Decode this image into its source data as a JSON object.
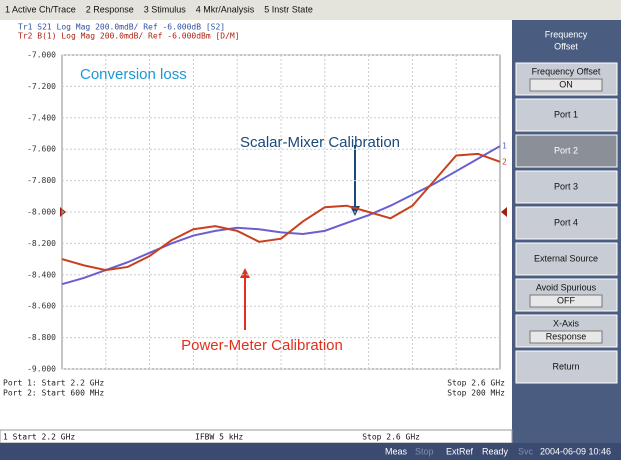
{
  "menu": [
    "1 Active Ch/Trace",
    "2 Response",
    "3 Stimulus",
    "4 Mkr/Analysis",
    "5 Instr State"
  ],
  "trace_header": [
    "Tr1 S21 Log Mag 200.0mdB/ Ref -6.000dB [S2]",
    "Tr2 B(1) Log Mag 200.0mdB/ Ref -6.000dBm [D/M]"
  ],
  "trace_labels": [
    "1",
    "2"
  ],
  "softkey_title": [
    "Frequency",
    "Offset"
  ],
  "softkeys": [
    {
      "label": "Frequency Offset",
      "value": "ON"
    },
    {
      "label": "Port 1"
    },
    {
      "label": "Port 2"
    },
    {
      "label": "Port 3"
    },
    {
      "label": "Port 4"
    },
    {
      "label": "External Source"
    },
    {
      "label": "Avoid Spurious",
      "value": "OFF"
    },
    {
      "label": "X-Axis",
      "value": "Response"
    },
    {
      "label": "Return"
    }
  ],
  "footer": {
    "port1_start": "Port 1: Start 2.2 GHz",
    "port2_start": "Port 2: Start 600 MHz",
    "port1_stop": "Stop 2.6 GHz",
    "port2_stop": "Stop 200 MHz"
  },
  "status_line": [
    "1  Start 2.2 GHz",
    "IFBW 5 kHz",
    "Stop 2.6 GHz"
  ],
  "status_bar": [
    "Meas",
    "Stop",
    "ExtRef",
    "Ready",
    "Svc",
    "2004-06-09 10:46"
  ],
  "chart_data": {
    "type": "line",
    "annotations": [
      "Conversion loss",
      "Scalar-Mixer Calibration",
      "Power-Meter Calibration"
    ],
    "x": [
      2.2,
      2.22,
      2.24,
      2.26,
      2.28,
      2.3,
      2.32,
      2.34,
      2.36,
      2.38,
      2.4,
      2.42,
      2.44,
      2.46,
      2.48,
      2.5,
      2.52,
      2.54,
      2.56,
      2.58,
      2.6
    ],
    "xlim": [
      2.2,
      2.6
    ],
    "ylim": [
      -9,
      -7
    ],
    "yticks": [
      {
        "value": -7,
        "label": "-7.000"
      },
      {
        "value": -7.2,
        "label": "-7.200"
      },
      {
        "value": -7.4,
        "label": "-7.400"
      },
      {
        "value": -7.6,
        "label": "-7.600"
      },
      {
        "value": -7.8,
        "label": "-7.800"
      },
      {
        "value": -8,
        "label": "-8.000"
      },
      {
        "value": -8.2,
        "label": "-8.200"
      },
      {
        "value": -8.4,
        "label": "-8.400"
      },
      {
        "value": -8.6,
        "label": "-8.600"
      },
      {
        "value": -8.8,
        "label": "-8.800"
      },
      {
        "value": -9,
        "label": "-9.000"
      }
    ],
    "grid": true,
    "series": [
      {
        "color": "#6a5fd0",
        "values": [
          -8.46,
          -8.42,
          -8.37,
          -8.32,
          -8.26,
          -8.2,
          -8.15,
          -8.12,
          -8.1,
          -8.11,
          -8.13,
          -8.14,
          -8.12,
          -8.07,
          -8.02,
          -7.96,
          -7.89,
          -7.82,
          -7.74,
          -7.66,
          -7.58
        ]
      },
      {
        "color": "#c8401e",
        "values": [
          -8.3,
          -8.34,
          -8.37,
          -8.35,
          -8.28,
          -8.18,
          -8.11,
          -8.09,
          -8.12,
          -8.19,
          -8.17,
          -8.06,
          -7.97,
          -7.96,
          -8.0,
          -8.04,
          -7.96,
          -7.8,
          -7.64,
          -7.63,
          -7.68
        ]
      }
    ]
  }
}
